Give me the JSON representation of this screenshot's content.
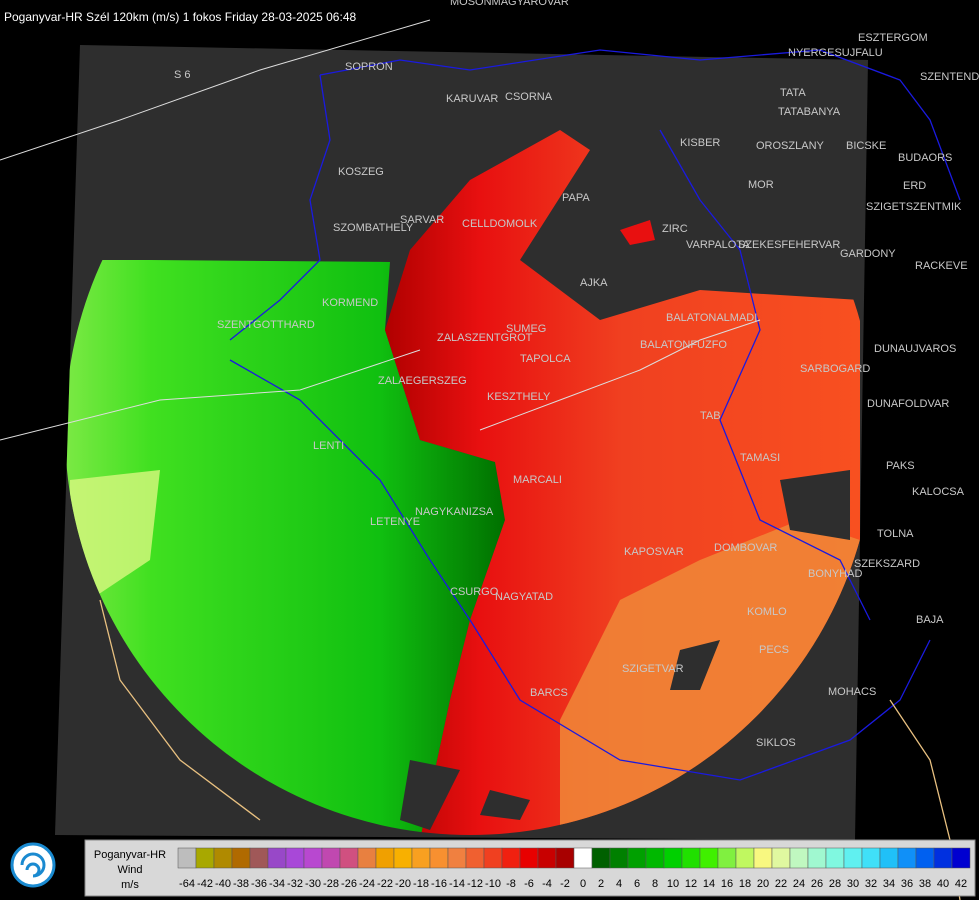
{
  "header": {
    "title": "Poganyvar-HR Szél 120km (m/s) 1 fokos Friday 28-03-2025 06:48"
  },
  "places": [
    "MOSONMAGYAROVAR",
    "SOPRON",
    "KARUVAR",
    "CSORNA",
    "KISBER",
    "TATA",
    "TATABANYA",
    "OROSZLANY",
    "BICSKE",
    "BUDAORS",
    "ERD",
    "SZIGETSZENTMIK",
    "MOR",
    "KOSZEG",
    "PAPA",
    "SZOMBATHELY",
    "SARVAR",
    "CELLDOMOLK",
    "ZIRC",
    "VARPALOTA",
    "SZEKESFEHERVAR",
    "GARDONY",
    "RACKEVE",
    "AJKA",
    "KORMEND",
    "SZENTGOTTHARD",
    "SUMEG",
    "ZALASZENTGROT",
    "BALATONALMADI",
    "BALATONFUZFO",
    "DUNAUJVAROS",
    "TAPOLCA",
    "SARBOGARD",
    "ZALAEGERSZEG",
    "KESZTHELY",
    "DUNAFOLDVAR",
    "TAB",
    "PAKS",
    "TAMASI",
    "MARCALI",
    "KALOCSA",
    "NAGYKANIZSA",
    "LETENYE",
    "LENTI",
    "TOLNA",
    "KAPOSVAR",
    "DOMBOVAR",
    "SZEKSZARD",
    "BONYHAD",
    "CSURGO",
    "NAGYATAD",
    "KOMLO",
    "BAJA",
    "PECS",
    "SZIGETVAR",
    "BARCS",
    "MOHACS",
    "SIKLOS",
    "ESZTERGOM",
    "NYERGESUJFALU",
    "SZENTENDRE",
    "S 6"
  ],
  "legend": {
    "lines": [
      "Poganyvar-HR",
      "Wind",
      "m/s"
    ],
    "stops": [
      {
        "value": -64,
        "color": "#bdbdbd"
      },
      {
        "value": -42,
        "color": "#a8a800"
      },
      {
        "value": -40,
        "color": "#b08a00"
      },
      {
        "value": -38,
        "color": "#b06a00"
      },
      {
        "value": -36,
        "color": "#a05858"
      },
      {
        "value": -34,
        "color": "#9848c8"
      },
      {
        "value": -32,
        "color": "#a848d8"
      },
      {
        "value": -30,
        "color": "#b848d0"
      },
      {
        "value": -28,
        "color": "#c048b0"
      },
      {
        "value": -26,
        "color": "#d05080"
      },
      {
        "value": -24,
        "color": "#e88040"
      },
      {
        "value": -22,
        "color": "#f0a000"
      },
      {
        "value": -20,
        "color": "#f8b000"
      },
      {
        "value": -18,
        "color": "#f8a020"
      },
      {
        "value": -16,
        "color": "#f89030"
      },
      {
        "value": -14,
        "color": "#f08040"
      },
      {
        "value": -12,
        "color": "#f06030"
      },
      {
        "value": -10,
        "color": "#f04020"
      },
      {
        "value": -8,
        "color": "#f02010"
      },
      {
        "value": -6,
        "color": "#e80000"
      },
      {
        "value": -4,
        "color": "#c80000"
      },
      {
        "value": -2,
        "color": "#a80000"
      },
      {
        "value": 0,
        "color": "#ffffff"
      },
      {
        "value": 2,
        "color": "#006000"
      },
      {
        "value": 4,
        "color": "#008000"
      },
      {
        "value": 6,
        "color": "#00a000"
      },
      {
        "value": 8,
        "color": "#00b800"
      },
      {
        "value": 10,
        "color": "#00d000"
      },
      {
        "value": 12,
        "color": "#20e000"
      },
      {
        "value": 14,
        "color": "#40f000"
      },
      {
        "value": 16,
        "color": "#80f040"
      },
      {
        "value": 18,
        "color": "#c0f860"
      },
      {
        "value": 20,
        "color": "#f8f880"
      },
      {
        "value": 22,
        "color": "#e0f8a0"
      },
      {
        "value": 24,
        "color": "#c0f8c0"
      },
      {
        "value": 26,
        "color": "#a0f8d0"
      },
      {
        "value": 28,
        "color": "#80f8e0"
      },
      {
        "value": 30,
        "color": "#60f0f0"
      },
      {
        "value": 32,
        "color": "#40e0f8"
      },
      {
        "value": 34,
        "color": "#20c0f8"
      },
      {
        "value": 36,
        "color": "#1090f8"
      },
      {
        "value": 38,
        "color": "#0060f0"
      },
      {
        "value": 40,
        "color": "#0030e0"
      },
      {
        "value": 42,
        "color": "#0000d0"
      }
    ]
  }
}
